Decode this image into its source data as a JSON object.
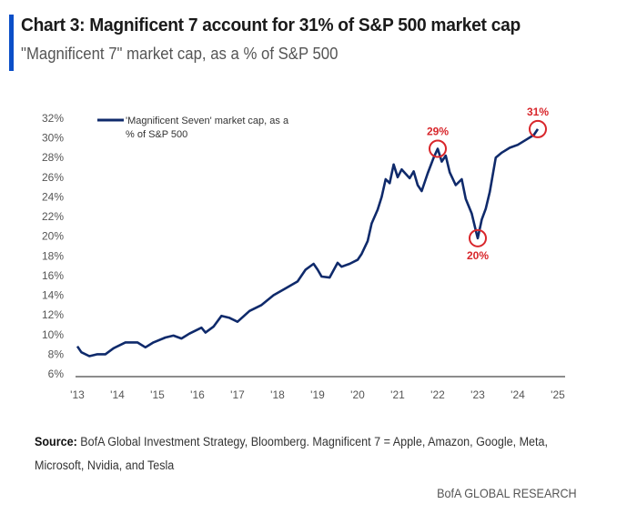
{
  "header": {
    "title": "Chart 3: Magnificent 7 account for 31% of S&P 500 market cap",
    "subtitle": "\"Magnificent 7\" market cap, as a % of S&P 500"
  },
  "footer": {
    "source_label": "Source:",
    "source_text": " BofA Global Investment Strategy, Bloomberg. Magnificent 7 = Apple, Amazon, Google, Meta, Microsoft, Nvidia, and Tesla",
    "brand": "BofA GLOBAL RESEARCH"
  },
  "colors": {
    "accent_bar": "#0b4fc8",
    "line": "#0f2a6b",
    "annotation": "#d8262b",
    "axis": "#555555"
  },
  "chart_data": {
    "type": "line",
    "title": "Chart 3: Magnificent 7 account for 31% of S&P 500 market cap",
    "subtitle": "\"Magnificent 7\" market cap, as a % of S&P 500",
    "xlabel": "",
    "ylabel": "",
    "xlim": [
      2013,
      2025
    ],
    "ylim": [
      6,
      32
    ],
    "x_tick_values": [
      2013,
      2014,
      2015,
      2016,
      2017,
      2018,
      2019,
      2020,
      2021,
      2022,
      2023,
      2024,
      2025
    ],
    "x_tick_labels": [
      "'13",
      "'14",
      "'15",
      "'16",
      "'17",
      "'18",
      "'19",
      "'20",
      "'21",
      "'22",
      "'23",
      "'24",
      "'25"
    ],
    "y_tick_values": [
      6,
      8,
      10,
      12,
      14,
      16,
      18,
      20,
      22,
      24,
      26,
      28,
      30,
      32
    ],
    "y_tick_labels": [
      "6%",
      "8%",
      "10%",
      "12%",
      "14%",
      "16%",
      "18%",
      "20%",
      "22%",
      "24%",
      "26%",
      "28%",
      "30%",
      "32%"
    ],
    "grid": false,
    "legend": {
      "position": "top-left",
      "entries": [
        "'Magnificent Seven' market cap, as a % of S&P 500"
      ]
    },
    "legend_lines": [
      "'Magnificent Seven' market cap, as a",
      "% of S&P 500"
    ],
    "series": [
      {
        "name": "'Magnificent Seven' market cap, as a % of S&P 500",
        "x": [
          2013.0,
          2013.1,
          2013.3,
          2013.5,
          2013.7,
          2013.9,
          2014.2,
          2014.5,
          2014.7,
          2014.9,
          2015.2,
          2015.4,
          2015.6,
          2015.8,
          2016.1,
          2016.2,
          2016.4,
          2016.6,
          2016.8,
          2017.0,
          2017.3,
          2017.6,
          2017.9,
          2018.2,
          2018.5,
          2018.7,
          2018.9,
          2019.0,
          2019.1,
          2019.3,
          2019.5,
          2019.6,
          2019.8,
          2020.0,
          2020.1,
          2020.25,
          2020.35,
          2020.5,
          2020.6,
          2020.7,
          2020.8,
          2020.9,
          2021.0,
          2021.1,
          2021.3,
          2021.4,
          2021.5,
          2021.6,
          2021.75,
          2021.9,
          2022.0,
          2022.1,
          2022.2,
          2022.3,
          2022.45,
          2022.6,
          2022.7,
          2022.85,
          2022.95,
          2023.0,
          2023.1,
          2023.2,
          2023.3,
          2023.45,
          2023.6,
          2023.8,
          2024.0,
          2024.2,
          2024.4,
          2024.5
        ],
        "values": [
          8.8,
          8.2,
          7.8,
          8.0,
          8.0,
          8.6,
          9.2,
          9.2,
          8.7,
          9.2,
          9.7,
          9.9,
          9.6,
          10.1,
          10.7,
          10.2,
          10.8,
          11.9,
          11.7,
          11.3,
          12.4,
          13.0,
          14.0,
          14.7,
          15.4,
          16.6,
          17.2,
          16.6,
          15.9,
          15.8,
          17.3,
          16.9,
          17.2,
          17.6,
          18.2,
          19.5,
          21.3,
          22.7,
          24.0,
          25.8,
          25.4,
          27.3,
          26.0,
          26.8,
          25.9,
          26.6,
          25.2,
          24.6,
          26.4,
          28.0,
          28.9,
          27.6,
          28.2,
          26.5,
          25.2,
          25.8,
          23.8,
          22.3,
          20.6,
          19.8,
          21.7,
          22.8,
          24.5,
          28.0,
          28.5,
          29.0,
          29.3,
          29.8,
          30.3,
          30.9
        ]
      }
    ],
    "annotations": [
      {
        "label": "29%",
        "x": 2022.0,
        "y": 28.9,
        "label_position": "above"
      },
      {
        "label": "20%",
        "x": 2023.0,
        "y": 19.8,
        "label_position": "below"
      },
      {
        "label": "31%",
        "x": 2024.5,
        "y": 30.9,
        "label_position": "above"
      }
    ]
  }
}
